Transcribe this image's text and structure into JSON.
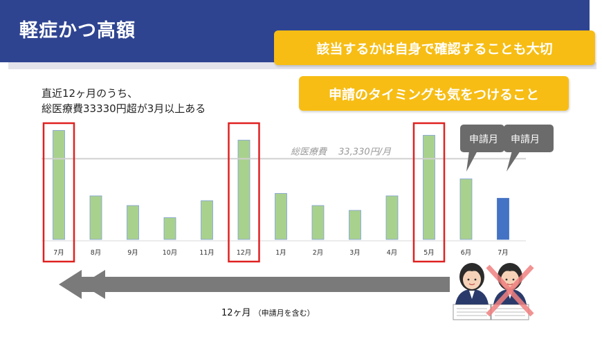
{
  "slide": {
    "title": "軽症かつ高額",
    "callout_1": "該当するかは自身で確認することも大切",
    "callout_2": "申請のタイミングも気をつけること",
    "desc_line1": "直近12ヶ月のうち、",
    "desc_line2": "総医療費33330円超が3月以上ある",
    "bubble_left": "申請月",
    "bubble_right": "申請月",
    "period_main": "12ヶ月",
    "period_note": "（申請月を含む）"
  },
  "colors": {
    "band": "#2f4491",
    "callout": "#f7bd14",
    "bar": "#a9d18e",
    "bar_highlight": "#4472c4",
    "highlight_box": "#e02020",
    "arrow": "#777777",
    "bubble": "#6b6b6b"
  },
  "icons": [
    "person-icon",
    "person-crossed-icon",
    "back-arrow-icon"
  ],
  "chart_data": {
    "type": "bar",
    "categories": [
      "7月",
      "8月",
      "9月",
      "10月",
      "11月",
      "12月",
      "1月",
      "2月",
      "3月",
      "4月",
      "5月",
      "6月",
      "7月"
    ],
    "values": [
      45000,
      18000,
      14000,
      9000,
      16000,
      41000,
      19000,
      14000,
      12000,
      18000,
      43000,
      25000,
      17000
    ],
    "threshold": {
      "label": "総医療費",
      "value_label": "33,330円/月",
      "value": 33330
    },
    "highlighted": [
      0,
      5,
      10
    ],
    "last_bar_color": "#4472c4",
    "ylim": [
      0,
      48000
    ]
  }
}
